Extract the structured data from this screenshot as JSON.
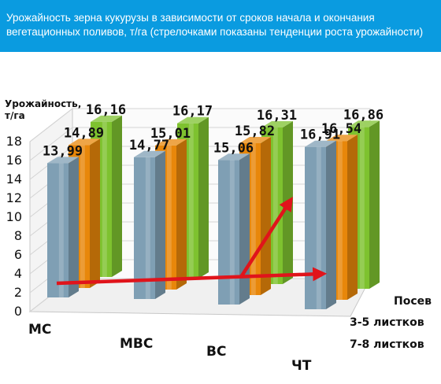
{
  "header": {
    "line1": "Урожайность зерна кукурузы в зависимости от сроков начала и окончания",
    "line2": "вегетационных поливов, т/га (стрелочками показаны тенденции роста урожайности)"
  },
  "chart_data": {
    "type": "bar",
    "ylabel_line1": "Урожайность,",
    "ylabel_line2": "т/га",
    "ylim": [
      0,
      18
    ],
    "yticks": [
      "0",
      "2",
      "4",
      "6",
      "8",
      "10",
      "12",
      "14",
      "16",
      "18"
    ],
    "categories": [
      "МС",
      "МВС",
      "ВС",
      "ЧТ"
    ],
    "series_title": "Посев",
    "series": [
      {
        "name": "7-8 листков",
        "values": [
          13.99,
          14.77,
          15.06,
          16.91
        ],
        "labels": [
          "13,99",
          "14,77",
          "15,06",
          "16,91"
        ],
        "color": "#7f9fb4"
      },
      {
        "name": "3-5 листков",
        "values": [
          14.89,
          15.01,
          15.82,
          16.54
        ],
        "labels": [
          "14,89",
          "15,01",
          "15,82",
          "16,54"
        ],
        "color": "#e8870a"
      },
      {
        "name": "",
        "values": [
          16.16,
          16.17,
          16.31,
          16.86
        ],
        "labels": [
          "16,16",
          "16,17",
          "16,31",
          "16,86"
        ],
        "color": "#7ec22f"
      }
    ],
    "annotation": "red arrows showing yield growth trends",
    "arrow_color": "#e0141b"
  }
}
